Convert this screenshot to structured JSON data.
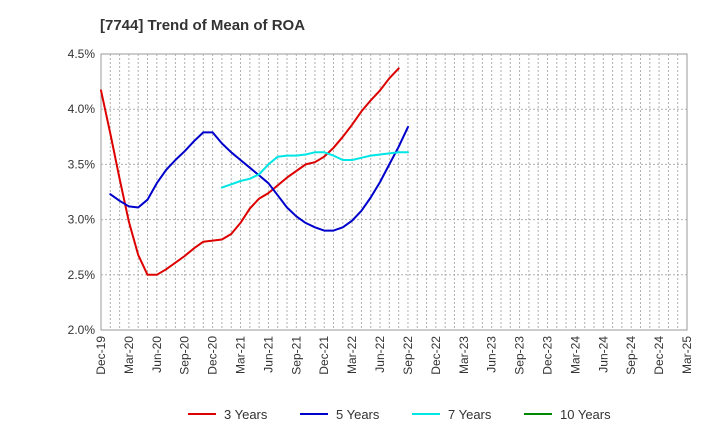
{
  "chart_data": {
    "type": "line",
    "title": "[7744]  Trend of Mean of ROA",
    "xlabel": "",
    "ylabel": "",
    "x_ticks": [
      "Dec-19",
      "Mar-20",
      "Jun-20",
      "Sep-20",
      "Dec-20",
      "Mar-21",
      "Jun-21",
      "Sep-21",
      "Dec-21",
      "Mar-22",
      "Jun-22",
      "Sep-22",
      "Dec-22",
      "Mar-23",
      "Jun-23",
      "Sep-23",
      "Dec-23",
      "Mar-24",
      "Jun-24",
      "Sep-24",
      "Dec-24",
      "Mar-25"
    ],
    "y_ticks": [
      "2.0%",
      "2.5%",
      "3.0%",
      "3.5%",
      "4.0%",
      "4.5%"
    ],
    "ylim": [
      2.0,
      4.5
    ],
    "grid": true,
    "legend_position": "bottom",
    "series": [
      {
        "name": "3 Years",
        "color": "#dd0000",
        "points": [
          [
            0,
            4.17
          ],
          [
            1,
            3.78
          ],
          [
            2,
            3.37
          ],
          [
            3,
            2.98
          ],
          [
            4,
            2.68
          ],
          [
            5,
            2.5
          ],
          [
            6,
            2.5
          ],
          [
            7,
            2.55
          ],
          [
            8,
            2.61
          ],
          [
            9,
            2.67
          ],
          [
            10,
            2.74
          ],
          [
            11,
            2.8
          ],
          [
            12,
            2.81
          ],
          [
            13,
            2.82
          ],
          [
            14,
            2.87
          ],
          [
            15,
            2.97
          ],
          [
            16,
            3.1
          ],
          [
            17,
            3.19
          ],
          [
            18,
            3.24
          ],
          [
            19,
            3.31
          ],
          [
            20,
            3.38
          ],
          [
            21,
            3.44
          ],
          [
            22,
            3.5
          ],
          [
            23,
            3.52
          ],
          [
            24,
            3.57
          ],
          [
            25,
            3.65
          ],
          [
            26,
            3.75
          ],
          [
            27,
            3.86
          ],
          [
            28,
            3.98
          ],
          [
            29,
            4.08
          ],
          [
            30,
            4.17
          ],
          [
            31,
            4.28
          ],
          [
            32,
            4.37
          ]
        ]
      },
      {
        "name": "5 Years",
        "color": "#0000cc",
        "points": [
          [
            1,
            3.23
          ],
          [
            2,
            3.17
          ],
          [
            3,
            3.12
          ],
          [
            4,
            3.11
          ],
          [
            5,
            3.18
          ],
          [
            6,
            3.33
          ],
          [
            7,
            3.45
          ],
          [
            8,
            3.54
          ],
          [
            9,
            3.62
          ],
          [
            10,
            3.71
          ],
          [
            11,
            3.79
          ],
          [
            12,
            3.79
          ],
          [
            13,
            3.69
          ],
          [
            14,
            3.61
          ],
          [
            15,
            3.54
          ],
          [
            16,
            3.47
          ],
          [
            17,
            3.4
          ],
          [
            18,
            3.33
          ],
          [
            19,
            3.22
          ],
          [
            20,
            3.11
          ],
          [
            21,
            3.03
          ],
          [
            22,
            2.97
          ],
          [
            23,
            2.93
          ],
          [
            24,
            2.9
          ],
          [
            25,
            2.9
          ],
          [
            26,
            2.93
          ],
          [
            27,
            2.99
          ],
          [
            28,
            3.08
          ],
          [
            29,
            3.2
          ],
          [
            30,
            3.34
          ],
          [
            31,
            3.5
          ],
          [
            32,
            3.66
          ],
          [
            33,
            3.84
          ]
        ]
      },
      {
        "name": "7 Years",
        "color": "#00e5e5",
        "points": [
          [
            13,
            3.29
          ],
          [
            14,
            3.32
          ],
          [
            15,
            3.35
          ],
          [
            16,
            3.37
          ],
          [
            17,
            3.41
          ],
          [
            18,
            3.5
          ],
          [
            19,
            3.57
          ],
          [
            20,
            3.58
          ],
          [
            21,
            3.58
          ],
          [
            22,
            3.59
          ],
          [
            23,
            3.61
          ],
          [
            24,
            3.61
          ],
          [
            25,
            3.58
          ],
          [
            26,
            3.54
          ],
          [
            27,
            3.54
          ],
          [
            28,
            3.56
          ],
          [
            29,
            3.58
          ],
          [
            30,
            3.59
          ],
          [
            31,
            3.6
          ],
          [
            32,
            3.61
          ],
          [
            33,
            3.61
          ]
        ]
      },
      {
        "name": "10 Years",
        "color": "#008800",
        "points": []
      }
    ]
  }
}
